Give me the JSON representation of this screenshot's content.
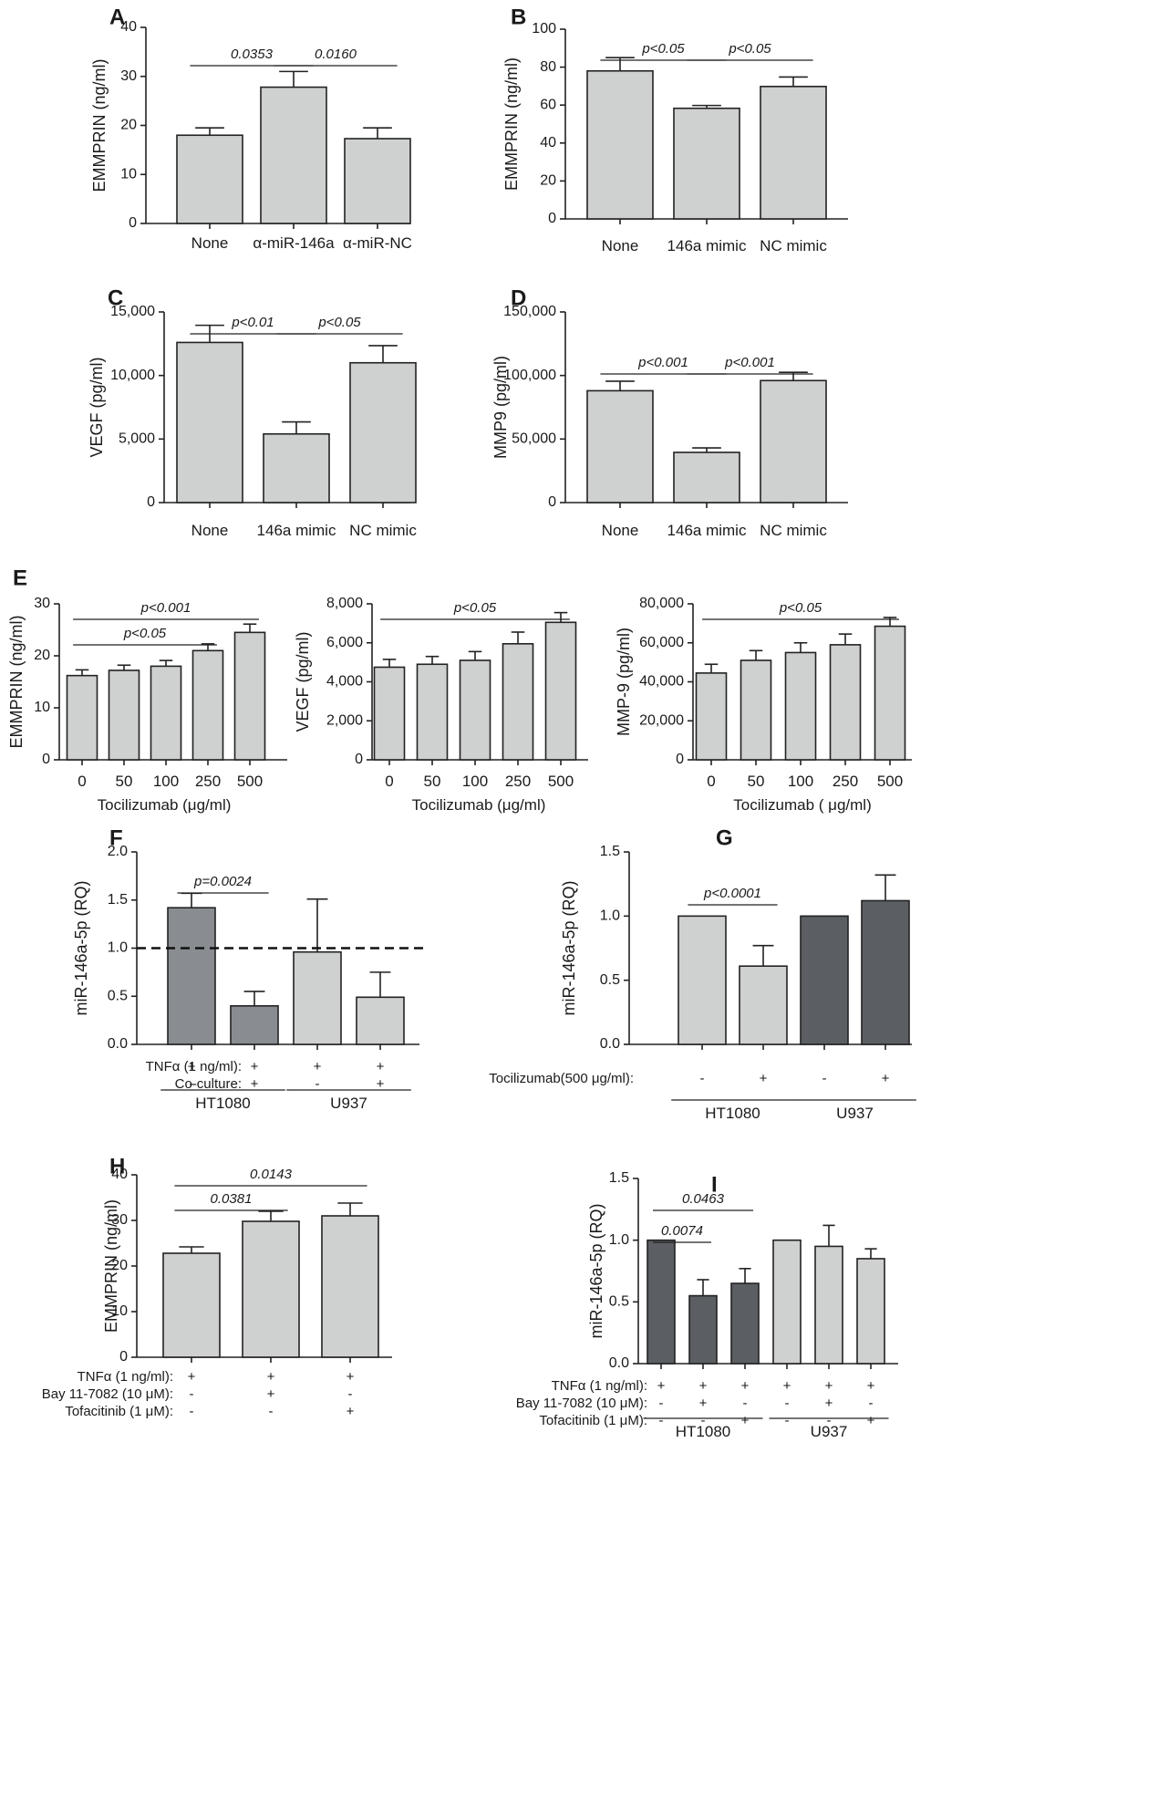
{
  "colors": {
    "light": "#cfd1d0",
    "dark": "#5b5e62",
    "mid": "#898c91",
    "ink": "#222222"
  },
  "charts": [
    {
      "label": "A",
      "type": "bar",
      "ylabel": "EMMPRIN (ng/ml)",
      "categories": [
        "None",
        "α-miR-146a",
        "α-miR-NC"
      ],
      "values": [
        18,
        27.8,
        17.3
      ],
      "errors": [
        1.5,
        3.2,
        2.2
      ],
      "ylim": [
        0,
        40
      ],
      "yticks": [
        "0",
        "10",
        "20",
        "30",
        "40"
      ],
      "colors": [
        "light",
        "light",
        "light"
      ],
      "sig": [
        {
          "label": "0.0353",
          "from": 0,
          "to": 1
        },
        {
          "label": "0.0160",
          "from": 1,
          "to": 2
        }
      ]
    },
    {
      "label": "B",
      "type": "bar",
      "ylabel": "EMMPRIN (ng/ml)",
      "categories": [
        "None",
        "146a mimic",
        "NC mimic"
      ],
      "values": [
        78,
        58.3,
        69.8
      ],
      "errors": [
        7,
        1.5,
        5
      ],
      "ylim": [
        0,
        100
      ],
      "yticks": [
        "0",
        "20",
        "40",
        "60",
        "80",
        "100"
      ],
      "colors": [
        "light",
        "light",
        "light"
      ],
      "sig": [
        {
          "label": "p<0.05",
          "from": 0,
          "to": 1
        },
        {
          "label": "p<0.05",
          "from": 1,
          "to": 2
        }
      ]
    },
    {
      "label": "C",
      "type": "bar",
      "ylabel": "VEGF (pg/ml)",
      "categories": [
        "None",
        "146a mimic",
        "NC mimic"
      ],
      "values": [
        12600,
        5400,
        11000
      ],
      "errors": [
        1350,
        950,
        1350
      ],
      "ylim": [
        0,
        15000
      ],
      "yticks": [
        "0",
        "5,000",
        "10,000",
        "15,000"
      ],
      "colors": [
        "light",
        "light",
        "light"
      ],
      "sig": [
        {
          "label": "p<0.01",
          "from": 0,
          "to": 1
        },
        {
          "label": "p<0.05",
          "from": 1,
          "to": 2
        }
      ]
    },
    {
      "label": "D",
      "type": "bar",
      "ylabel": "MMP9 (pg/ml)",
      "categories": [
        "None",
        "146a mimic",
        "NC mimic"
      ],
      "values": [
        88000,
        39500,
        96000
      ],
      "errors": [
        7500,
        3500,
        6500
      ],
      "ylim": [
        0,
        150000
      ],
      "yticks": [
        "0",
        "50,000",
        "100,000",
        "150,000"
      ],
      "colors": [
        "light",
        "light",
        "light"
      ],
      "sig": [
        {
          "label": "p<0.001",
          "from": 0,
          "to": 1
        },
        {
          "label": "p<0.001",
          "from": 1,
          "to": 2
        }
      ]
    },
    {
      "label": "E",
      "type": "bar",
      "ylabel": "EMMPRIN (ng/ml)",
      "xlabel": "Tocilizumab (μg/ml)",
      "categories": [
        "0",
        "50",
        "100",
        "250",
        "500"
      ],
      "values": [
        16.2,
        17.2,
        18,
        21,
        24.5
      ],
      "errors": [
        1.1,
        1,
        1.1,
        1.3,
        1.6
      ],
      "ylim": [
        0,
        30
      ],
      "yticks": [
        "0",
        "10",
        "20",
        "30"
      ],
      "colors": [
        "light",
        "light",
        "light",
        "light",
        "light"
      ],
      "sig": [
        {
          "label": "p<0.001",
          "from": 0,
          "to": 4
        },
        {
          "label": "p<0.05",
          "from": 0,
          "to": 3
        }
      ]
    },
    {
      "label": "",
      "type": "bar",
      "ylabel": "VEGF (pg/ml)",
      "xlabel": "Tocilizumab (μg/ml)",
      "categories": [
        "0",
        "50",
        "100",
        "250",
        "500"
      ],
      "values": [
        4750,
        4900,
        5100,
        5950,
        7050
      ],
      "errors": [
        400,
        400,
        450,
        600,
        500
      ],
      "ylim": [
        0,
        8000
      ],
      "yticks": [
        "0",
        "2,000",
        "4,000",
        "6,000",
        "8,000"
      ],
      "colors": [
        "light",
        "light",
        "light",
        "light",
        "light"
      ],
      "sig": [
        {
          "label": "p<0.05",
          "from": 0,
          "to": 4
        }
      ]
    },
    {
      "label": "",
      "type": "bar",
      "ylabel": "MMP-9 (pg/ml)",
      "xlabel": "Tocilizumab ( μg/ml)",
      "categories": [
        "0",
        "50",
        "100",
        "250",
        "500"
      ],
      "values": [
        44500,
        51000,
        55000,
        59000,
        68500
      ],
      "errors": [
        4500,
        5000,
        5000,
        5500,
        4500
      ],
      "ylim": [
        0,
        80000
      ],
      "yticks": [
        "0",
        "20,000",
        "40,000",
        "60,000",
        "80,000"
      ],
      "colors": [
        "light",
        "light",
        "light",
        "light",
        "light"
      ],
      "sig": [
        {
          "label": "p<0.05",
          "from": 0,
          "to": 4
        }
      ]
    },
    {
      "label": "F",
      "type": "bar",
      "ylabel": "miR-146a-5p (RQ)",
      "values": [
        1.42,
        0.4,
        0.96,
        0.49
      ],
      "errors": [
        0.15,
        0.15,
        0.55,
        0.26
      ],
      "ylim": [
        0,
        2.0
      ],
      "yticks": [
        "0.0",
        "0.5",
        "1.0",
        "1.5",
        "2.0"
      ],
      "colors": [
        "mid",
        "mid",
        "light",
        "light"
      ],
      "reference_line": 1.0,
      "sig": [
        {
          "label": "p=0.0024",
          "from": 0,
          "to": 1
        }
      ],
      "rows": [
        {
          "label": "TNFα (1 ng/ml):",
          "marks": [
            "+",
            "+",
            "+",
            "+"
          ]
        },
        {
          "label": "Co-culture:",
          "marks": [
            "-",
            "+",
            "-",
            "+"
          ]
        }
      ],
      "groups": [
        {
          "label": "HT1080",
          "from": 0,
          "to": 1
        },
        {
          "label": "U937",
          "from": 2,
          "to": 3
        }
      ]
    },
    {
      "label": "G",
      "type": "bar",
      "ylabel": "miR-146a-5p (RQ)",
      "values": [
        1.0,
        0.61,
        1.0,
        1.12
      ],
      "errors": [
        0,
        0.16,
        0,
        0.2
      ],
      "ylim": [
        0,
        1.5
      ],
      "yticks": [
        "0.0",
        "0.5",
        "1.0",
        "1.5"
      ],
      "colors": [
        "light",
        "light",
        "dark",
        "dark"
      ],
      "sig": [
        {
          "label": "p<0.0001",
          "from": 0,
          "to": 1
        }
      ],
      "rows": [
        {
          "label": "Tocilizumab(500 μg/ml):",
          "marks": [
            "-",
            "+",
            "-",
            "+"
          ]
        }
      ],
      "groups": [
        {
          "label": "HT1080",
          "from": 0,
          "to": 1
        },
        {
          "label": "U937",
          "from": 2,
          "to": 3
        }
      ]
    },
    {
      "label": "H",
      "type": "bar",
      "ylabel": "EMMPRIN (ng/ml)",
      "values": [
        22.8,
        29.8,
        31
      ],
      "errors": [
        1.4,
        2.2,
        2.8
      ],
      "ylim": [
        0,
        40
      ],
      "yticks": [
        "0",
        "10",
        "20",
        "30",
        "40"
      ],
      "colors": [
        "light",
        "light",
        "light"
      ],
      "sig": [
        {
          "label": "0.0143",
          "from": 0,
          "to": 2
        },
        {
          "label": "0.0381",
          "from": 0,
          "to": 1
        }
      ],
      "rows": [
        {
          "label": "TNFα (1 ng/ml):",
          "marks": [
            "+",
            "+",
            "+"
          ]
        },
        {
          "label": "Bay 11-7082 (10 μM):",
          "marks": [
            "-",
            "+",
            "-"
          ]
        },
        {
          "label": "Tofacitinib (1 μM):",
          "marks": [
            "-",
            "-",
            "+"
          ]
        }
      ]
    },
    {
      "label": "I",
      "type": "bar",
      "ylabel": "miR-146a-5p (RQ)",
      "values": [
        1.0,
        0.55,
        0.65,
        1.0,
        0.95,
        0.85
      ],
      "errors": [
        0,
        0.13,
        0.12,
        0,
        0.17,
        0.08
      ],
      "ylim": [
        0,
        1.5
      ],
      "yticks": [
        "0.0",
        "0.5",
        "1.0",
        "1.5"
      ],
      "colors": [
        "dark",
        "dark",
        "dark",
        "light",
        "light",
        "light"
      ],
      "sig": [
        {
          "label": "0.0463",
          "from": 0,
          "to": 2
        },
        {
          "label": "0.0074",
          "from": 0,
          "to": 1
        }
      ],
      "rows": [
        {
          "label": "TNFα (1 ng/ml):",
          "marks": [
            "+",
            "+",
            "+",
            "+",
            "+",
            "+"
          ]
        },
        {
          "label": "Bay 11-7082 (10 μM):",
          "marks": [
            "-",
            "+",
            "-",
            "-",
            "+",
            "-"
          ]
        },
        {
          "label": "Tofacitinib (1 μM):",
          "marks": [
            "-",
            "-",
            "+",
            "-",
            "-",
            "+"
          ]
        }
      ],
      "groups": [
        {
          "label": "HT1080",
          "from": 0,
          "to": 2
        },
        {
          "label": "U937",
          "from": 3,
          "to": 5
        }
      ]
    }
  ]
}
